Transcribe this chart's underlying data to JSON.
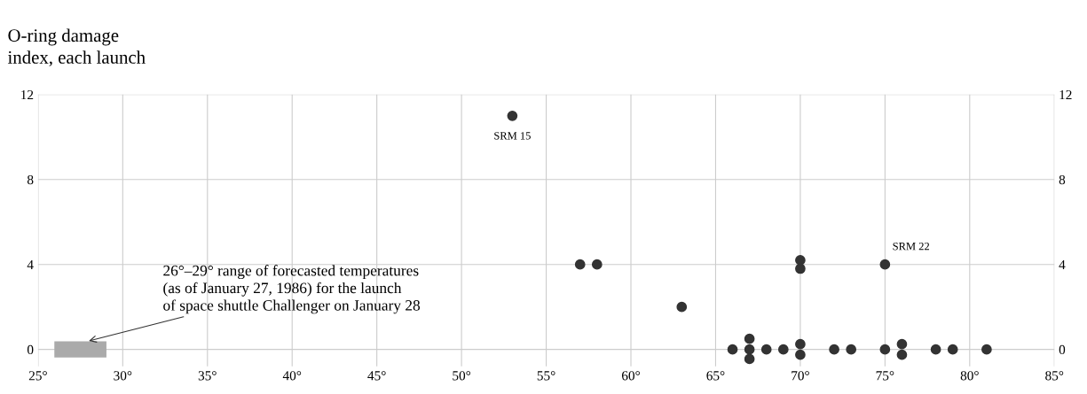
{
  "chart_data": {
    "type": "scatter",
    "ylabel": "O-ring damage\nindex, each launch",
    "x": [
      53,
      57,
      58,
      63,
      70,
      70,
      75,
      66,
      67,
      67,
      67,
      68,
      69,
      70,
      70,
      72,
      73,
      75,
      76,
      76,
      78,
      79,
      81
    ],
    "series": [
      {
        "color": "#333333",
        "values": [
          11,
          4,
          4,
          2,
          4.2,
          3.8,
          4,
          0,
          0.5,
          0,
          -0.45,
          0,
          0,
          0.25,
          -0.25,
          0,
          0,
          0,
          0.25,
          -0.25,
          0,
          0,
          0
        ]
      }
    ],
    "marker": "circle",
    "xlim": [
      25,
      85
    ],
    "xticks": [
      {
        "value": 25,
        "label": "25°"
      },
      {
        "value": 30,
        "label": "30°"
      },
      {
        "value": 35,
        "label": "35°"
      },
      {
        "value": 40,
        "label": "40°"
      },
      {
        "value": 45,
        "label": "45°"
      },
      {
        "value": 50,
        "label": "50°"
      },
      {
        "value": 55,
        "label": "55°"
      },
      {
        "value": 60,
        "label": "60°"
      },
      {
        "value": 65,
        "label": "65°"
      },
      {
        "value": 70,
        "label": "70°"
      },
      {
        "value": 75,
        "label": "75°"
      },
      {
        "value": 80,
        "label": "80°"
      },
      {
        "value": 85,
        "label": "85°"
      }
    ],
    "ylim": [
      -0.8,
      12
    ],
    "yticks": [
      0,
      4,
      8,
      12
    ],
    "y2lim": [
      -0.8,
      12
    ],
    "y2ticks": [
      0,
      4,
      8,
      12
    ],
    "grid": true,
    "bands": [
      {
        "axis": "x",
        "from": 26,
        "to": 29,
        "color": "#aaaaaa"
      }
    ],
    "annotations": [
      {
        "text": "SRM 15",
        "x": 53,
        "y": 11
      },
      {
        "text": "SRM 22",
        "x": 75,
        "y": 4
      },
      {
        "text": "26°–29° range of forecasted temperatures\n(as of January 27, 1986) for the launch\nof space shuttle Challenger on January 28",
        "x": 28,
        "y": 0.4
      }
    ]
  }
}
